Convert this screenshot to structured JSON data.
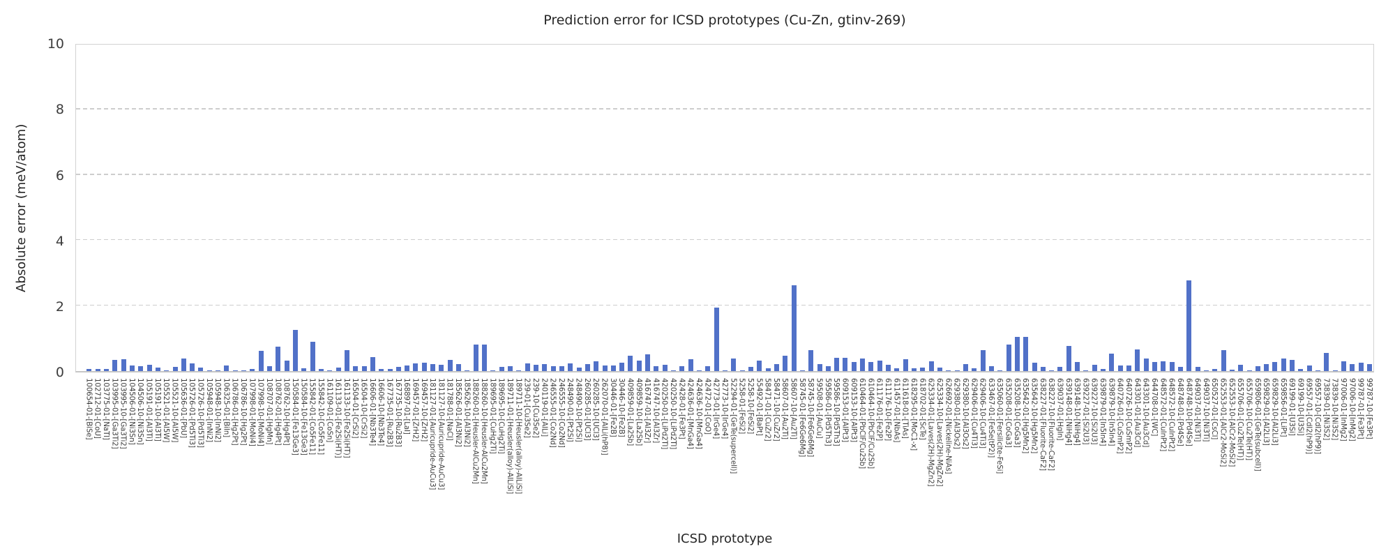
{
  "figure": {
    "title": "Prediction error for ICSD prototypes (Cu-Zn, gtinv-269)",
    "xlabel": "ICSD prototype",
    "ylabel": "Absolute error (meV/atom)"
  },
  "chart_data": {
    "type": "bar",
    "title": "Prediction error for ICSD prototypes (Cu-Zn, gtinv-269)",
    "xlabel": "ICSD prototype",
    "ylabel": "Absolute error (meV/atom)",
    "ylim": [
      0,
      10
    ],
    "yticks": [
      0,
      2,
      4,
      6,
      8,
      10
    ],
    "grid": "horizontal-dashed",
    "legend_position": "none",
    "bar_color": "#5171C8",
    "grid_color": "#cdcdcd",
    "categories": [
      "100654-01-[BiSe]",
      "102712-01-[CoU]",
      "103775-01-[NaTl]",
      "103995-01-[Ga3Ti2]",
      "103995-10-[Ga3Ti2]",
      "104506-01-[Ni3Sn]",
      "104506-10-[Ni3Sn]",
      "105191-01-[Al3Ti]",
      "105191-10-[Al3Ti]",
      "105521-01-[Al5W]",
      "105521-10-[Al5W]",
      "105636-01-[PbU]",
      "105726-01-[Pd5Ti3]",
      "105726-10-[Pd5Ti3]",
      "105948-01-[InNi2]",
      "105948-10-[InNi2]",
      "106325-01-[BiIn]",
      "106786-01-[Hg2Pt]",
      "106786-10-[Hg2Pt]",
      "107998-01-[MoNi4]",
      "107998-10-[MoNi4]",
      "108707-01-[HgMn]",
      "108762-01-[Hg4Pt]",
      "108762-10-[Hg4Pt]",
      "150584-01-[Fe13Ge3]",
      "150584-10-[Fe13Ge3]",
      "155842-01-[Co5Fe11]",
      "155842-10-[Co5Fe11]",
      "161109-01-[CoSn]",
      "161133-01-[Fe2Si(HT)]",
      "161133-10-[Fe2Si(HT)]",
      "16504-01-[CrSi2]",
      "16504-10-[CrSi2]",
      "16606-01-[Nb3Te4]",
      "16606-10-[Nb3Te4]",
      "167735-01-[Ru2B3]",
      "167735-10-[Ru2B3]",
      "168897-01-[LaI]",
      "169457-01-[ZrH2]",
      "169457-10-[ZrH2]",
      "181127-01-[Auricupride-AuCu3]",
      "181127-10-[Auricupride-AuCu3]",
      "181788-01-[NaCl]",
      "185626-01-[Al3Ni2]",
      "185626-10-[Al3Ni2]",
      "188260-01-[Heusler-AlCu2Mn]",
      "188260-10-[Heusler-AlCu2Mn]",
      "189695-01-[CuHg2Ti]",
      "189695-10-[CuHg2Ti]",
      "189711-01-[Heusler(alloy)-AlLiSi]",
      "189711-10-[Heusler(alloy)-AlLiSi]",
      "239-01-[Cu3Se2]",
      "239-10-[Cu3Se2]",
      "240119-01-[AlLi]",
      "246555-01-[Co2Nd]",
      "246555-10-[Co2Nd]",
      "248490-01-[Pt2Si]",
      "248490-10-[Pt2Si]",
      "260285-01-[UCl3]",
      "260285-10-[UCl3]",
      "262070-01-[AlLi(hP8)]",
      "30446-01-[Fe2B]",
      "30446-10-[Fe2B]",
      "409859-01-[La2Sb]",
      "409859-10-[La2Sb]",
      "416747-01-[Al3Zr]",
      "416747-10-[Al3Zr]",
      "420250-01-[LiPd2Tl]",
      "420250-10-[LiPd2Tl]",
      "42428-01-[Fe3Pt]",
      "424636-01-[MnGa4]",
      "424636-10-[MnGa4]",
      "42472-01-[CoO]",
      "42773-01-[IrGe4]",
      "42773-10-[IrGe4]",
      "52294-01-[GeTe(supercell)]",
      "5258-01-[FeSi2]",
      "5258-10-[FeSi2]",
      "55492-01-[BaPt]",
      "58471-01-[CuZr2]",
      "58471-10-[CuZr2]",
      "58607-01-[Au2Ti]",
      "58607-10-[Au2Ti]",
      "58745-01-[Fe6Ge6Mg]",
      "58745-10-[Fe6Ge6Mg]",
      "59508-01-[AuCu]",
      "59586-01-[Pd5Th3]",
      "59586-10-[Pd5Th3]",
      "609153-01-[AlPt3]",
      "609153-10-[AlPt3]",
      "610464-01-[PbClF/Cu2Sb]",
      "610464-10-[PbClF/Cu2Sb]",
      "611176-01-[Fe2P]",
      "611176-10-[Fe2P]",
      "611457-01-[NbAs]",
      "611618-01-[TiAs]",
      "618295-01-[MoC1-x]",
      "618702-01-[ScTe]",
      "625334-01-[Laves(2H)-MgZn2]",
      "625334-10-[Laves(2H)-MgZn2]",
      "626692-01-[Nickeline-NiAs]",
      "629380-01-[Al3Os2]",
      "629380-10-[Al3Os2]",
      "629406-01-[Cu4Ti3]",
      "629406-10-[Cu4Ti3]",
      "633467-01-[FeSe(tP2)]",
      "635060-01-[Fersilicite-FeSi]",
      "635208-01-[CoGa3]",
      "635208-10-[CoGa3]",
      "635642-01-[Hg5Mn2]",
      "635642-10-[Hg5Mn2]",
      "638227-01-[Fluorite-CaF2]",
      "638227-10-[Fluorite-CaF2]",
      "639037-01-[HgIn]",
      "639148-01-[NiHg4]",
      "639148-10-[NiHg4]",
      "639227-01-[Si2U3]",
      "639227-10-[Si2U3]",
      "639879-01-[In5In4]",
      "639879-10-[In5In4]",
      "640726-01-[CuSmP2]",
      "640726-10-[CuSmP2]",
      "643301-01-[Au3Cd]",
      "643301-10-[Au3Cd]",
      "644708-01-[WC]",
      "648572-01-[CuInPt2]",
      "648572-10-[CuInPt2]",
      "648748-01-[Pd4Se]",
      "648748-10-[Pd4Se]",
      "649037-01-[Ni3Ti]",
      "649037-10-[Ni3Ti]",
      "650527-01-[CsCl]",
      "652553-01-[AlCr2-MoSi2]",
      "652553-10-[AlCr2-MoSi2]",
      "655706-01-[Cu2Te(HT)]",
      "655706-10-[Cu2Te(HT)]",
      "659806-01-[GeTe(subcell)]",
      "659829-01-[Al2Li3]",
      "659829-10-[Al2Li3]",
      "659856-01-[LiPt]",
      "69199-01-[U3Si]",
      "69199-10-[U3Si]",
      "69557-01-[CdI2(hP9)]",
      "69557-10-[CdI2(hP9)]",
      "73839-01-[Ni3S2]",
      "73839-10-[Ni3S2]",
      "97006-01-[InMg2]",
      "97006-10-[InMg2]",
      "99787-01-[Fe3Pt]",
      "99787-10-[Fe3Pt]"
    ],
    "values": [
      0.07,
      0.06,
      0.06,
      0.35,
      0.37,
      0.18,
      0.15,
      0.2,
      0.11,
      0.01,
      0.13,
      0.39,
      0.23,
      0.11,
      0.02,
      0.01,
      0.18,
      0.01,
      0.01,
      0.07,
      0.62,
      0.14,
      0.74,
      0.32,
      1.26,
      0.08,
      0.9,
      0.07,
      0.01,
      0.11,
      0.63,
      0.15,
      0.14,
      0.42,
      0.06,
      0.07,
      0.12,
      0.17,
      0.24,
      0.26,
      0.22,
      0.19,
      0.35,
      0.21,
      0.01,
      0.8,
      0.82,
      0.01,
      0.12,
      0.15,
      0.01,
      0.24,
      0.19,
      0.22,
      0.14,
      0.14,
      0.24,
      0.1,
      0.21,
      0.29,
      0.17,
      0.17,
      0.26,
      0.47,
      0.33,
      0.52,
      0.14,
      0.19,
      0.01,
      0.15,
      0.36,
      0.01,
      0.15,
      1.95,
      0.01,
      0.39,
      0.02,
      0.13,
      0.32,
      0.08,
      0.22,
      0.46,
      2.62,
      0.02,
      0.63,
      0.22,
      0.15,
      0.41,
      0.41,
      0.27,
      0.39,
      0.27,
      0.32,
      0.2,
      0.08,
      0.37,
      0.08,
      0.1,
      0.3,
      0.1,
      0.01,
      0.03,
      0.21,
      0.08,
      0.65,
      0.14,
      0.01,
      0.81,
      1.04,
      1.04,
      0.25,
      0.13,
      0.02,
      0.13,
      0.77,
      0.28,
      0.02,
      0.2,
      0.07,
      0.53,
      0.18,
      0.18,
      0.67,
      0.39,
      0.27,
      0.3,
      0.27,
      0.13,
      2.77,
      0.13,
      0.01,
      0.06,
      0.65,
      0.04,
      0.2,
      0.01,
      0.15,
      0.21,
      0.27,
      0.39,
      0.34,
      0.06,
      0.18,
      0.01,
      0.55,
      0.02,
      0.3,
      0.21,
      0.25,
      0.21
    ]
  }
}
